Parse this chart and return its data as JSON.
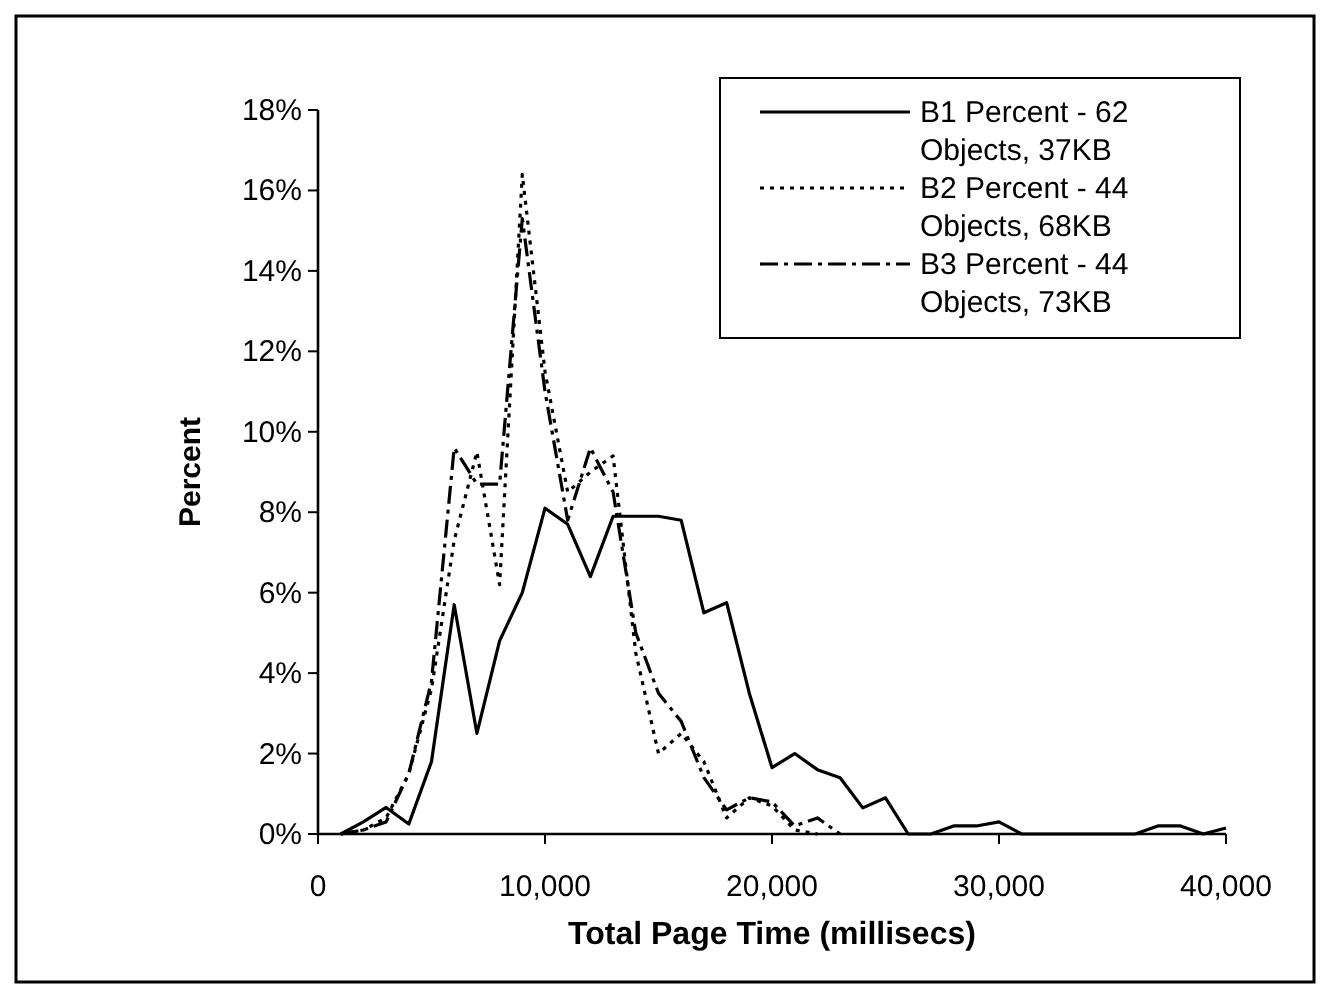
{
  "chart_data": {
    "type": "line",
    "xlabel": "Total Page Time (millisecs)",
    "ylabel": "Percent",
    "xlim": [
      0,
      40000
    ],
    "xticks": [
      {
        "value": 0,
        "label": "0"
      },
      {
        "value": 10000,
        "label": "10,000"
      },
      {
        "value": 20000,
        "label": "20,000"
      },
      {
        "value": 30000,
        "label": "30,000"
      },
      {
        "value": 40000,
        "label": "40,000"
      }
    ],
    "ylim": [
      0,
      18
    ],
    "yticks": [
      {
        "value": 0,
        "label": "0%"
      },
      {
        "value": 2,
        "label": "2%"
      },
      {
        "value": 4,
        "label": "4%"
      },
      {
        "value": 6,
        "label": "6%"
      },
      {
        "value": 8,
        "label": "8%"
      },
      {
        "value": 10,
        "label": "10%"
      },
      {
        "value": 12,
        "label": "12%"
      },
      {
        "value": 14,
        "label": "14%"
      },
      {
        "value": 16,
        "label": "16%"
      },
      {
        "value": 18,
        "label": "18%"
      }
    ],
    "grid": false,
    "legend": "top right",
    "marker": "none",
    "series": [
      {
        "name": "B1 Percent - 62 Objects, 37KB",
        "color": "#000000",
        "line_style": "solid",
        "x": [
          1000,
          2000,
          3000,
          4000,
          5000,
          6000,
          7000,
          8000,
          9000,
          10000,
          11000,
          12000,
          13000,
          14000,
          15000,
          16000,
          17000,
          18000,
          19000,
          20000,
          21000,
          22000,
          23000,
          24000,
          25000,
          26000,
          27000,
          28000,
          29000,
          30000,
          31000,
          32000,
          33000,
          34000,
          35000,
          36000,
          37000,
          38000,
          39000,
          40000
        ],
        "values": [
          0,
          0.3,
          0.66,
          0.25,
          1.8,
          5.7,
          2.5,
          4.8,
          6.0,
          8.1,
          7.7,
          6.4,
          7.9,
          7.9,
          7.9,
          7.8,
          5.5,
          5.75,
          3.5,
          1.65,
          2.0,
          1.6,
          1.4,
          0.65,
          0.9,
          0,
          0,
          0.2,
          0.2,
          0.3,
          0,
          0,
          0,
          0,
          0,
          0,
          0.2,
          0.2,
          0,
          0.15
        ]
      },
      {
        "name": "B2 Percent - 44 Objects, 68KB",
        "color": "#000000",
        "line_style": "dotted",
        "x": [
          1000,
          2000,
          3000,
          4000,
          5000,
          6000,
          7000,
          8000,
          9000,
          10000,
          11000,
          12000,
          13000,
          14000,
          15000,
          16000,
          17000,
          18000,
          19000,
          20000,
          21000,
          22000
        ],
        "values": [
          0,
          0.1,
          0.4,
          1.5,
          3.6,
          7.3,
          9.5,
          6.2,
          16.4,
          11.5,
          8.5,
          9.0,
          9.4,
          4.5,
          2.0,
          2.5,
          1.8,
          0.4,
          0.9,
          0.7,
          0.1,
          0
        ]
      },
      {
        "name": "B3 Percent - 44 Objects, 73KB",
        "color": "#000000",
        "line_style": "dashed",
        "x": [
          1000,
          2000,
          3000,
          4000,
          5000,
          6000,
          7000,
          8000,
          9000,
          10000,
          11000,
          12000,
          13000,
          14000,
          15000,
          16000,
          17000,
          18000,
          19000,
          20000,
          21000,
          22000,
          23000
        ],
        "values": [
          0,
          0.1,
          0.3,
          1.5,
          3.8,
          9.6,
          8.7,
          8.7,
          15.3,
          11.0,
          7.8,
          9.6,
          8.5,
          5.0,
          3.5,
          2.8,
          1.4,
          0.6,
          0.9,
          0.8,
          0.2,
          0.4,
          0
        ]
      }
    ]
  }
}
